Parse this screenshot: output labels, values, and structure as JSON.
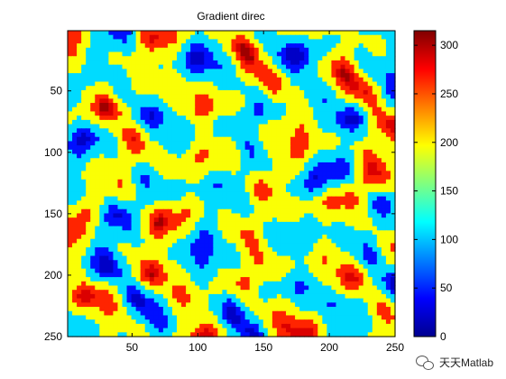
{
  "chart_data": {
    "type": "heatmap",
    "title": "Gradient direc",
    "xlabel": "",
    "ylabel": "",
    "x_ticks": [
      50,
      100,
      150,
      200,
      250
    ],
    "y_ticks": [
      50,
      100,
      150,
      200,
      250
    ],
    "xlim": [
      1,
      250
    ],
    "ylim": [
      1,
      250
    ],
    "y_reversed": true,
    "grid": false,
    "colormap": "jet",
    "colorbar": {
      "ticks": [
        0,
        50,
        100,
        150,
        200,
        250,
        300
      ],
      "range": [
        0,
        315
      ],
      "placement": "right"
    }
  },
  "watermark": {
    "text": "天天Matlab",
    "icon": "wechat-icon"
  }
}
